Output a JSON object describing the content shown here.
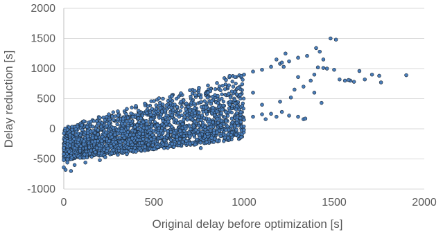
{
  "chart_data": {
    "type": "scatter",
    "title": "",
    "xlabel": "Original delay before optimization [s]",
    "ylabel": "Delay reduction [s]",
    "xlim": [
      0,
      2000
    ],
    "ylim": [
      -1000,
      2000
    ],
    "x_ticks": [
      0,
      500,
      1000,
      1500,
      2000
    ],
    "y_ticks": [
      -1000,
      -500,
      0,
      500,
      1000,
      1500,
      2000
    ],
    "x_tick_labels": [
      "0",
      "500",
      "1000",
      "1500",
      "2000"
    ],
    "y_tick_labels": [
      "-1000",
      "-500",
      "0",
      "500",
      "1000",
      "1500",
      "2000"
    ],
    "grid": "horizontal",
    "legend": "none",
    "marker_color": "#4a7ebb",
    "marker_edge_color": "#1f2d3d",
    "series": [
      {
        "values": [
          [
            0,
            -640
          ],
          [
            10,
            -680
          ],
          [
            40,
            -700
          ],
          [
            0,
            -520
          ],
          [
            20,
            -560
          ],
          [
            60,
            -600
          ],
          [
            120,
            -560
          ],
          [
            90,
            -480
          ],
          [
            200,
            -520
          ],
          [
            230,
            -470
          ],
          [
            300,
            -430
          ],
          [
            350,
            -420
          ],
          [
            400,
            -380
          ],
          [
            450,
            -300
          ],
          [
            520,
            -300
          ],
          [
            600,
            -250
          ],
          [
            680,
            -200
          ],
          [
            730,
            -260
          ],
          [
            760,
            -320
          ],
          [
            820,
            -150
          ],
          [
            850,
            -60
          ],
          [
            870,
            -120
          ],
          [
            900,
            -20
          ],
          [
            930,
            40
          ],
          [
            960,
            100
          ],
          [
            1000,
            150
          ],
          [
            1050,
            200
          ],
          [
            1100,
            240
          ],
          [
            1120,
            160
          ],
          [
            1150,
            250
          ],
          [
            1180,
            200
          ],
          [
            1210,
            280
          ],
          [
            1250,
            220
          ],
          [
            1300,
            200
          ],
          [
            1330,
            160
          ],
          [
            1340,
            170
          ],
          [
            100,
            60
          ],
          [
            150,
            120
          ],
          [
            200,
            180
          ],
          [
            250,
            240
          ],
          [
            300,
            290
          ],
          [
            350,
            330
          ],
          [
            400,
            380
          ],
          [
            450,
            420
          ],
          [
            500,
            460
          ],
          [
            550,
            500
          ],
          [
            600,
            540
          ],
          [
            650,
            590
          ],
          [
            700,
            640
          ],
          [
            750,
            680
          ],
          [
            800,
            720
          ],
          [
            850,
            760
          ],
          [
            900,
            810
          ],
          [
            950,
            860
          ],
          [
            1000,
            900
          ],
          [
            1050,
            950
          ],
          [
            1100,
            980
          ],
          [
            1150,
            1030
          ],
          [
            1200,
            1080
          ],
          [
            1250,
            1120
          ],
          [
            1300,
            1180
          ],
          [
            1350,
            1210
          ],
          [
            1230,
            1250
          ],
          [
            1180,
            1150
          ],
          [
            1210,
            1100
          ],
          [
            1220,
            1030
          ],
          [
            1400,
            1340
          ],
          [
            1420,
            1280
          ],
          [
            1440,
            1150
          ],
          [
            1460,
            1000
          ],
          [
            1500,
            980
          ],
          [
            1480,
            1500
          ],
          [
            1510,
            1480
          ],
          [
            1410,
            1020
          ],
          [
            1390,
            900
          ],
          [
            1440,
            1010
          ],
          [
            1430,
            430
          ],
          [
            1390,
            600
          ],
          [
            1370,
            800
          ],
          [
            1300,
            860
          ],
          [
            1280,
            650
          ],
          [
            1330,
            700
          ],
          [
            1260,
            520
          ],
          [
            1200,
            450
          ],
          [
            1100,
            400
          ],
          [
            1050,
            600
          ],
          [
            980,
            560
          ],
          [
            920,
            400
          ],
          [
            880,
            320
          ],
          [
            820,
            460
          ],
          [
            760,
            520
          ],
          [
            700,
            300
          ],
          [
            640,
            200
          ],
          [
            580,
            120
          ],
          [
            520,
            60
          ],
          [
            460,
            10
          ],
          [
            420,
            -80
          ],
          [
            380,
            -160
          ],
          [
            320,
            -40
          ],
          [
            260,
            -90
          ],
          [
            210,
            -200
          ],
          [
            160,
            -150
          ],
          [
            110,
            -260
          ],
          [
            60,
            -320
          ],
          [
            30,
            -380
          ],
          [
            0,
            -420
          ],
          [
            70,
            -100
          ],
          [
            130,
            30
          ],
          [
            190,
            -20
          ],
          [
            250,
            90
          ],
          [
            330,
            170
          ],
          [
            410,
            230
          ],
          [
            490,
            330
          ],
          [
            570,
            390
          ],
          [
            650,
            450
          ],
          [
            730,
            560
          ],
          [
            800,
            600
          ],
          [
            870,
            640
          ],
          [
            940,
            700
          ],
          [
            990,
            740
          ],
          [
            1530,
            820
          ],
          [
            1560,
            800
          ],
          [
            1590,
            800
          ],
          [
            1610,
            780
          ],
          [
            1640,
            960
          ],
          [
            1670,
            820
          ],
          [
            1710,
            900
          ],
          [
            1760,
            770
          ],
          [
            1900,
            890
          ],
          [
            1580,
            810
          ],
          [
            1750,
            880
          ]
        ]
      }
    ]
  }
}
